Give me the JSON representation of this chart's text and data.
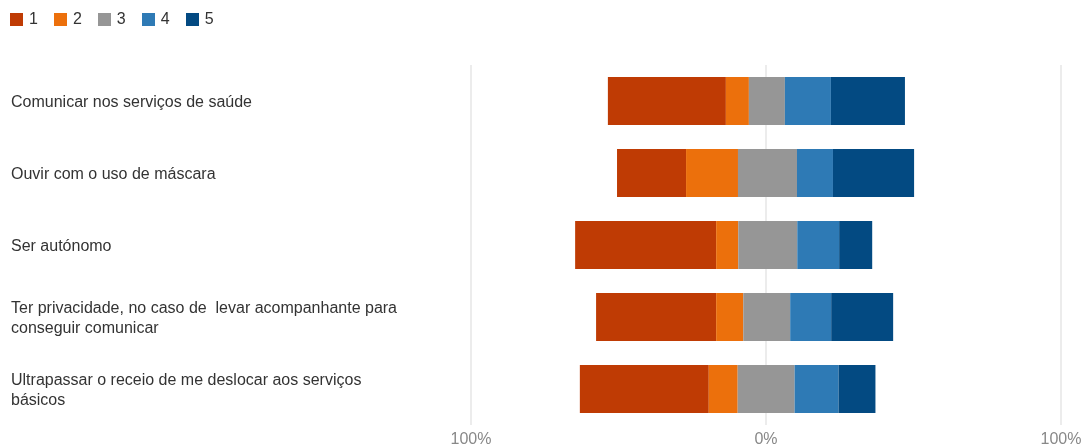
{
  "chart_data": {
    "type": "bar",
    "orientation": "horizontal",
    "categories": [
      "Comunicar nos serviços de saúde",
      "Ouvir com o uso de máscara",
      "Ser autónomo",
      "Ter privacidade, no caso de  levar acompanhante para conseguir comunicar",
      "Ultrapassar o receio de me deslocar aos serviços básicos"
    ],
    "series": [
      {
        "name": "1",
        "color": "#bf3b04",
        "values": [
          40.0,
          23.4,
          47.8,
          40.7,
          43.7
        ],
        "base": [
          -53.6,
          -50.5,
          -64.7,
          -57.6,
          -63.1
        ]
      },
      {
        "name": "2",
        "color": "#ec700c",
        "values": [
          7.8,
          17.6,
          7.5,
          9.2,
          9.8
        ],
        "base": [
          -13.6,
          -27.1,
          -16.9,
          -16.9,
          -19.4
        ]
      },
      {
        "name": "3",
        "color": "#969696",
        "values": [
          12.2,
          20.0,
          20.0,
          15.9,
          19.3
        ],
        "base": [
          -5.8,
          -9.5,
          -9.4,
          -7.7,
          -9.6
        ]
      },
      {
        "name": "4",
        "color": "#2e7ab5",
        "values": [
          15.6,
          12.2,
          14.2,
          13.9,
          14.9
        ],
        "base": [
          6.4,
          10.5,
          10.6,
          8.2,
          9.7
        ]
      },
      {
        "name": "5",
        "color": "#034a82",
        "values": [
          25.1,
          27.5,
          11.2,
          21.0,
          12.5
        ],
        "base": [
          22.0,
          22.7,
          24.8,
          22.1,
          24.6
        ]
      }
    ],
    "xlim": [
      -100,
      100
    ],
    "xticks": [
      {
        "value": -100,
        "label": "100%"
      },
      {
        "value": 0,
        "label": "0%"
      },
      {
        "value": 100,
        "label": "100%"
      }
    ],
    "grid": "x",
    "legend": "top left"
  }
}
